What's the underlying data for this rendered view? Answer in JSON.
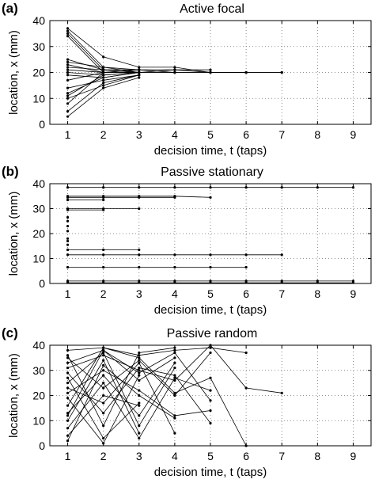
{
  "chart_data": [
    {
      "panel_label": "(a)",
      "title": "Active focal",
      "type": "line",
      "xlabel": "decision time, t (taps)",
      "ylabel": "location, x (mm)",
      "xlim": [
        0.5,
        9.5
      ],
      "ylim": [
        0,
        40
      ],
      "xticks": [
        "1",
        "2",
        "3",
        "4",
        "5",
        "6",
        "7",
        "8",
        "9"
      ],
      "yticks": [
        "0",
        "10",
        "20",
        "30",
        "40"
      ],
      "grid": "dotted",
      "series": [
        {
          "x": [
            1,
            2,
            3,
            4,
            5,
            6,
            7
          ],
          "y": [
            37,
            26,
            22,
            22,
            20,
            20,
            20
          ]
        },
        {
          "x": [
            1,
            2,
            3,
            4,
            5,
            6,
            7
          ],
          "y": [
            36,
            22,
            21,
            20,
            20,
            20,
            20
          ]
        },
        {
          "x": [
            1,
            2,
            3,
            4
          ],
          "y": [
            35,
            21,
            20,
            20
          ]
        },
        {
          "x": [
            1,
            2,
            3
          ],
          "y": [
            34,
            20,
            20
          ]
        },
        {
          "x": [
            1,
            2,
            3,
            4,
            5
          ],
          "y": [
            25,
            21,
            21,
            21,
            21
          ]
        },
        {
          "x": [
            1,
            2,
            3
          ],
          "y": [
            24,
            22,
            20
          ]
        },
        {
          "x": [
            1,
            2,
            3
          ],
          "y": [
            23,
            20,
            21
          ]
        },
        {
          "x": [
            1,
            2,
            3,
            4,
            5,
            6
          ],
          "y": [
            22,
            21,
            20,
            20,
            20,
            20
          ]
        },
        {
          "x": [
            1,
            2,
            3
          ],
          "y": [
            21,
            20,
            20
          ]
        },
        {
          "x": [
            1,
            2,
            3,
            4,
            5
          ],
          "y": [
            20,
            19,
            20,
            21,
            20
          ]
        },
        {
          "x": [
            1,
            2,
            3
          ],
          "y": [
            19,
            18,
            20
          ]
        },
        {
          "x": [
            1,
            2,
            3
          ],
          "y": [
            17,
            20,
            21
          ]
        },
        {
          "x": [
            1,
            2,
            3
          ],
          "y": [
            14,
            17,
            19
          ]
        },
        {
          "x": [
            1,
            2,
            3
          ],
          "y": [
            12,
            18,
            20
          ]
        },
        {
          "x": [
            1,
            2,
            3
          ],
          "y": [
            11,
            19,
            20
          ]
        },
        {
          "x": [
            1,
            2,
            3
          ],
          "y": [
            10,
            15,
            19
          ]
        },
        {
          "x": [
            1,
            2,
            3
          ],
          "y": [
            8,
            20,
            20
          ]
        },
        {
          "x": [
            1,
            2,
            3
          ],
          "y": [
            5,
            16,
            19
          ]
        },
        {
          "x": [
            1,
            2,
            3
          ],
          "y": [
            3,
            14,
            18
          ]
        }
      ]
    },
    {
      "panel_label": "(b)",
      "title": "Passive stationary",
      "type": "line",
      "xlabel": "decision time, t (taps)",
      "ylabel": "location, x (mm)",
      "xlim": [
        0.5,
        9.5
      ],
      "ylim": [
        0,
        40
      ],
      "xticks": [
        "1",
        "2",
        "3",
        "4",
        "5",
        "6",
        "7",
        "8",
        "9"
      ],
      "yticks": [
        "0",
        "10",
        "20",
        "30",
        "40"
      ],
      "grid": "dotted",
      "series": [
        {
          "x": [
            1,
            2,
            3,
            4,
            5,
            6,
            7,
            8,
            9
          ],
          "y": [
            38.5,
            38.5,
            38.5,
            38.5,
            38.5,
            38.5,
            38.5,
            38.5,
            38.5
          ]
        },
        {
          "x": [
            1,
            2,
            3,
            4,
            5
          ],
          "y": [
            35,
            35,
            35,
            35,
            34.5
          ]
        },
        {
          "x": [
            1,
            2,
            3,
            4
          ],
          "y": [
            34.5,
            34.5,
            34.5,
            34.5
          ]
        },
        {
          "x": [
            1,
            2
          ],
          "y": [
            33.5,
            33.5
          ]
        },
        {
          "x": [
            1,
            2,
            3
          ],
          "y": [
            30,
            30,
            30
          ]
        },
        {
          "x": [
            1,
            2
          ],
          "y": [
            29.5,
            29.5
          ]
        },
        {
          "x": [
            1
          ],
          "y": [
            26.5
          ]
        },
        {
          "x": [
            1
          ],
          "y": [
            25
          ]
        },
        {
          "x": [
            1
          ],
          "y": [
            23
          ]
        },
        {
          "x": [
            1
          ],
          "y": [
            21
          ]
        },
        {
          "x": [
            1
          ],
          "y": [
            18
          ]
        },
        {
          "x": [
            1
          ],
          "y": [
            17
          ]
        },
        {
          "x": [
            1
          ],
          "y": [
            15.5
          ]
        },
        {
          "x": [
            1,
            2,
            3
          ],
          "y": [
            13.5,
            13.5,
            13.5
          ]
        },
        {
          "x": [
            1,
            2,
            3,
            4,
            5,
            6,
            7
          ],
          "y": [
            11.5,
            11.5,
            11.5,
            11.5,
            11.5,
            11.5,
            11.5
          ]
        },
        {
          "x": [
            1,
            2,
            3,
            4,
            5,
            6
          ],
          "y": [
            6.5,
            6.5,
            6.5,
            6.5,
            6.5,
            6.5
          ]
        },
        {
          "x": [
            1,
            2,
            3,
            4,
            5,
            6,
            7,
            8,
            9
          ],
          "y": [
            1,
            1,
            1,
            1,
            1,
            1,
            1,
            1,
            1
          ]
        },
        {
          "x": [
            1,
            2,
            3,
            4,
            5,
            6,
            7,
            8,
            9
          ],
          "y": [
            0.3,
            0.3,
            0.3,
            0.3,
            0.3,
            0.3,
            0.3,
            0.3,
            0.3
          ]
        }
      ]
    },
    {
      "panel_label": "(c)",
      "title": "Passive random",
      "type": "line",
      "xlabel": "decision time, t (taps)",
      "ylabel": "location, x (mm)",
      "xlim": [
        0.5,
        9.5
      ],
      "ylim": [
        0,
        40
      ],
      "xticks": [
        "1",
        "2",
        "3",
        "4",
        "5",
        "6",
        "7",
        "8",
        "9"
      ],
      "yticks": [
        "0",
        "10",
        "20",
        "30",
        "40"
      ],
      "grid": "dotted",
      "series": [
        {
          "x": [
            1,
            2,
            3,
            4,
            5,
            6
          ],
          "y": [
            38,
            39,
            36,
            38,
            39,
            37
          ]
        },
        {
          "x": [
            1,
            2,
            3,
            4,
            5
          ],
          "y": [
            35,
            23,
            34,
            20,
            37
          ]
        },
        {
          "x": [
            1,
            2,
            3,
            4
          ],
          "y": [
            33,
            38,
            26,
            35
          ]
        },
        {
          "x": [
            1,
            2,
            3,
            4,
            5
          ],
          "y": [
            29,
            13,
            31,
            28,
            9
          ]
        },
        {
          "x": [
            1,
            2,
            3
          ],
          "y": [
            27,
            3,
            17
          ]
        },
        {
          "x": [
            1,
            2,
            3,
            4
          ],
          "y": [
            25,
            37,
            8,
            31
          ]
        },
        {
          "x": [
            1,
            2,
            3,
            4
          ],
          "y": [
            23,
            17,
            33,
            5
          ]
        },
        {
          "x": [
            1,
            2,
            3,
            4,
            5
          ],
          "y": [
            21,
            30,
            22,
            12,
            14
          ]
        },
        {
          "x": [
            1,
            2,
            3
          ],
          "y": [
            19,
            1,
            28
          ]
        },
        {
          "x": [
            1,
            2,
            3,
            4,
            5,
            6
          ],
          "y": [
            16,
            39,
            35,
            21,
            27,
            0
          ]
        },
        {
          "x": [
            1,
            2,
            3,
            4
          ],
          "y": [
            13,
            28,
            12,
            33
          ]
        },
        {
          "x": [
            1,
            2,
            3
          ],
          "y": [
            10,
            34,
            5
          ]
        },
        {
          "x": [
            1,
            2,
            3,
            4,
            5
          ],
          "y": [
            7,
            25,
            3,
            27,
            22
          ]
        },
        {
          "x": [
            1,
            2,
            3
          ],
          "y": [
            4,
            20,
            16
          ]
        },
        {
          "x": [
            1,
            2,
            3,
            4
          ],
          "y": [
            2,
            32,
            20,
            11
          ]
        },
        {
          "x": [
            1,
            2,
            3,
            4,
            5,
            6,
            7
          ],
          "y": [
            31,
            36,
            30,
            26,
            40,
            23,
            21
          ]
        },
        {
          "x": [
            1,
            2,
            3,
            4
          ],
          "y": [
            36,
            8,
            37,
            39
          ]
        },
        {
          "x": [
            1,
            2,
            3,
            4,
            5
          ],
          "y": [
            12,
            38,
            29,
            37,
            18
          ]
        }
      ]
    }
  ]
}
